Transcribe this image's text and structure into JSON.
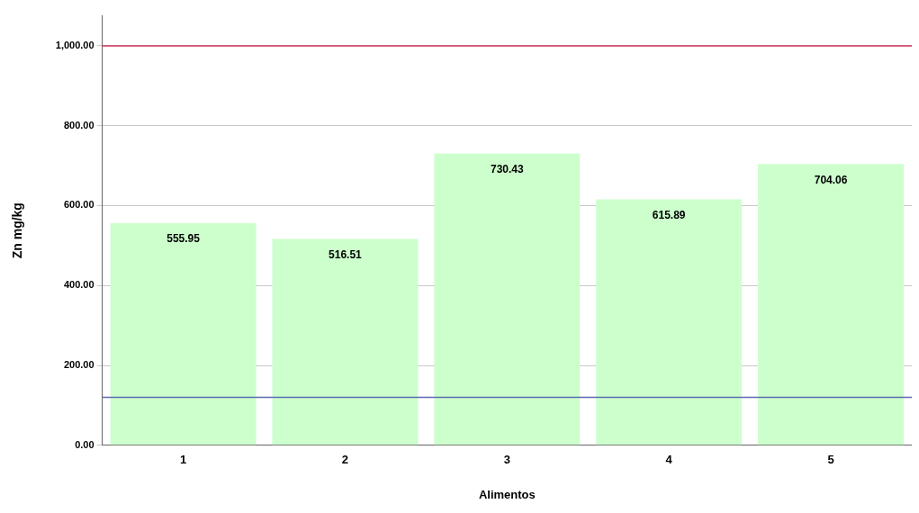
{
  "chart_data": {
    "type": "bar",
    "xlabel": "Alimentos",
    "ylabel": "Zn mg/kg",
    "categories": [
      "1",
      "2",
      "3",
      "4",
      "5"
    ],
    "values": [
      555.95,
      516.51,
      730.43,
      615.89,
      704.06
    ],
    "color": "#ccffcc",
    "data_labels": true,
    "ylim": [
      0,
      1075
    ],
    "yticks": [
      {
        "value": 0,
        "label": "0.00"
      },
      {
        "value": 200,
        "label": "200.00"
      },
      {
        "value": 400,
        "label": "400.00"
      },
      {
        "value": 600,
        "label": "600.00"
      },
      {
        "value": 800,
        "label": "800.00"
      },
      {
        "value": 1000,
        "label": "1,000.00"
      }
    ],
    "grid": "y",
    "legend": false,
    "ref_lines": [
      {
        "axis": "y",
        "value": 1000,
        "color": "#d0365c"
      },
      {
        "axis": "y",
        "value": 120,
        "color": "#5b6bb0"
      }
    ]
  }
}
